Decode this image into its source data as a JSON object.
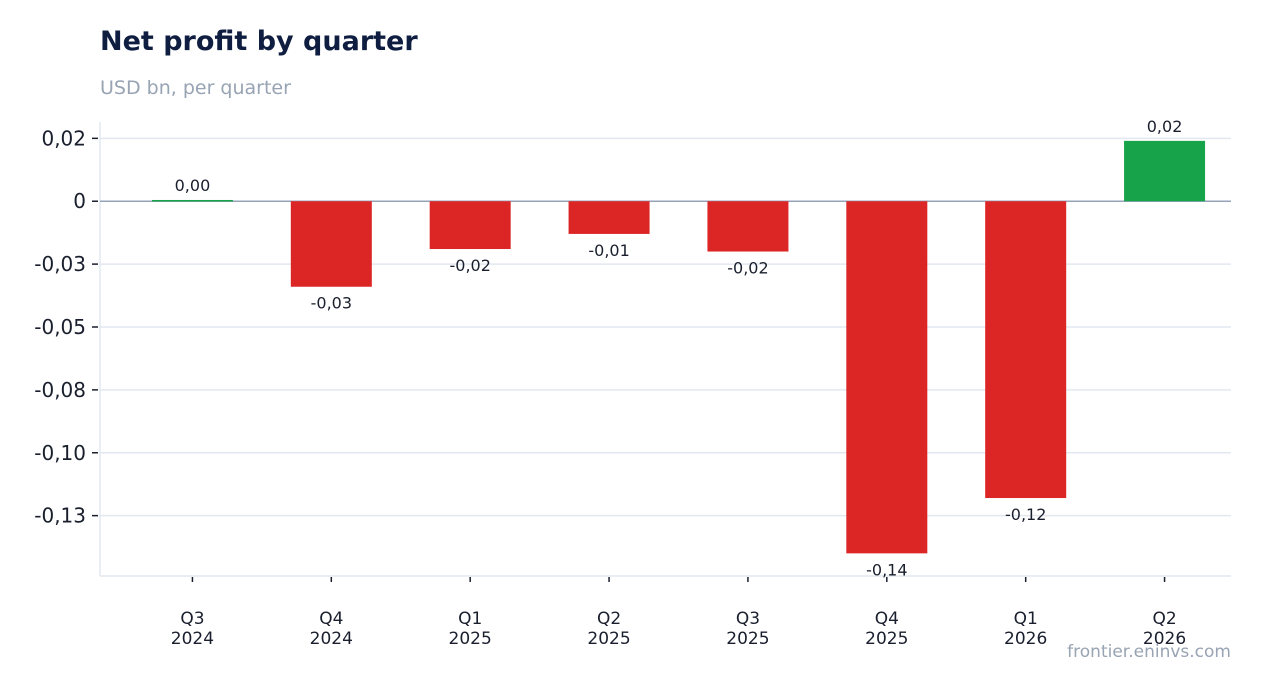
{
  "title": "Net profit by quarter",
  "subtitle": "USD bn, per quarter",
  "footer": "frontier.eninvs.com",
  "colors": {
    "positive": "#17a34a",
    "negative": "#dc2626",
    "grid": "#e2e8f0",
    "zero_line": "#94a3b8",
    "title": "#0f1d40",
    "subtitle": "#98a3b3"
  },
  "chart_data": {
    "type": "bar",
    "categories": [
      [
        "Q3",
        "2024"
      ],
      [
        "Q4",
        "2024"
      ],
      [
        "Q1",
        "2025"
      ],
      [
        "Q2",
        "2025"
      ],
      [
        "Q3",
        "2025"
      ],
      [
        "Q4",
        "2025"
      ],
      [
        "Q1",
        "2026"
      ],
      [
        "Q2",
        "2026"
      ]
    ],
    "values": [
      0.0005,
      -0.034,
      -0.019,
      -0.013,
      -0.02,
      -0.14,
      -0.118,
      0.024
    ],
    "data_labels": [
      "0,00",
      "-0,03",
      "-0,02",
      "-0,01",
      "-0,02",
      "-0,14",
      "-0,12",
      "0,02"
    ],
    "yticks": [
      0.025,
      0,
      -0.025,
      -0.05,
      -0.075,
      -0.1,
      -0.125
    ],
    "ytick_labels": [
      "0,02",
      "0",
      "-0,03",
      "-0,05",
      "-0,08",
      "-0,10",
      "-0,13"
    ],
    "ylim": [
      -0.149,
      0.0315
    ],
    "grid": true,
    "xlabel": "",
    "ylabel": ""
  }
}
